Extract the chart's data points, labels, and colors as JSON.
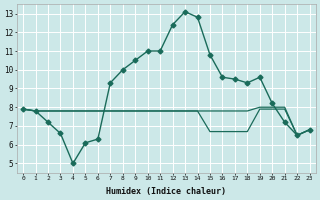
{
  "title": "",
  "xlabel": "Humidex (Indice chaleur)",
  "ylabel": "",
  "background_color": "#cce8e8",
  "grid_color": "#ffffff",
  "line_color": "#1a6b5a",
  "xlim": [
    -0.5,
    23.5
  ],
  "ylim": [
    4.5,
    13.5
  ],
  "xtick_labels": [
    "0",
    "1",
    "2",
    "3",
    "4",
    "5",
    "6",
    "7",
    "8",
    "9",
    "10",
    "11",
    "12",
    "13",
    "14",
    "15",
    "16",
    "17",
    "18",
    "19",
    "20",
    "21",
    "22",
    "23"
  ],
  "ytick_values": [
    5,
    6,
    7,
    8,
    9,
    10,
    11,
    12,
    13
  ],
  "series": [
    {
      "x": [
        0,
        1,
        2,
        3,
        4,
        5,
        6,
        7,
        8,
        9,
        10,
        11,
        12,
        13,
        14,
        15,
        16,
        17,
        18,
        19,
        20,
        21,
        22,
        23
      ],
      "y": [
        7.9,
        7.8,
        7.2,
        6.6,
        5.0,
        6.1,
        6.3,
        9.3,
        10.0,
        10.5,
        11.0,
        11.0,
        12.4,
        13.1,
        12.8,
        10.8,
        9.6,
        9.5,
        9.3,
        9.6,
        8.2,
        7.2,
        6.5,
        6.8
      ],
      "marker": "D",
      "markersize": 2.5,
      "linewidth": 1.0
    },
    {
      "x": [
        0,
        1,
        2,
        3,
        4,
        5,
        6,
        7,
        8,
        9,
        10,
        11,
        12,
        13,
        14,
        15,
        16,
        17,
        18,
        19,
        20,
        21,
        22,
        23
      ],
      "y": [
        7.9,
        7.8,
        7.8,
        7.8,
        7.8,
        7.8,
        7.8,
        7.8,
        7.8,
        7.8,
        7.8,
        7.8,
        7.8,
        7.8,
        7.8,
        6.7,
        6.7,
        6.7,
        6.7,
        7.9,
        7.9,
        7.9,
        6.5,
        6.8
      ],
      "marker": null,
      "markersize": 0,
      "linewidth": 0.9
    },
    {
      "x": [
        0,
        1,
        2,
        3,
        4,
        5,
        6,
        7,
        8,
        9,
        10,
        11,
        12,
        13,
        14,
        15,
        16,
        17,
        18,
        19,
        20,
        21,
        22,
        23
      ],
      "y": [
        7.9,
        7.8,
        7.8,
        7.8,
        7.8,
        7.8,
        7.8,
        7.8,
        7.8,
        7.8,
        7.8,
        7.8,
        7.8,
        7.8,
        7.8,
        7.8,
        7.8,
        7.8,
        7.8,
        8.0,
        8.0,
        8.0,
        6.5,
        6.8
      ],
      "marker": null,
      "markersize": 0,
      "linewidth": 0.9
    }
  ]
}
